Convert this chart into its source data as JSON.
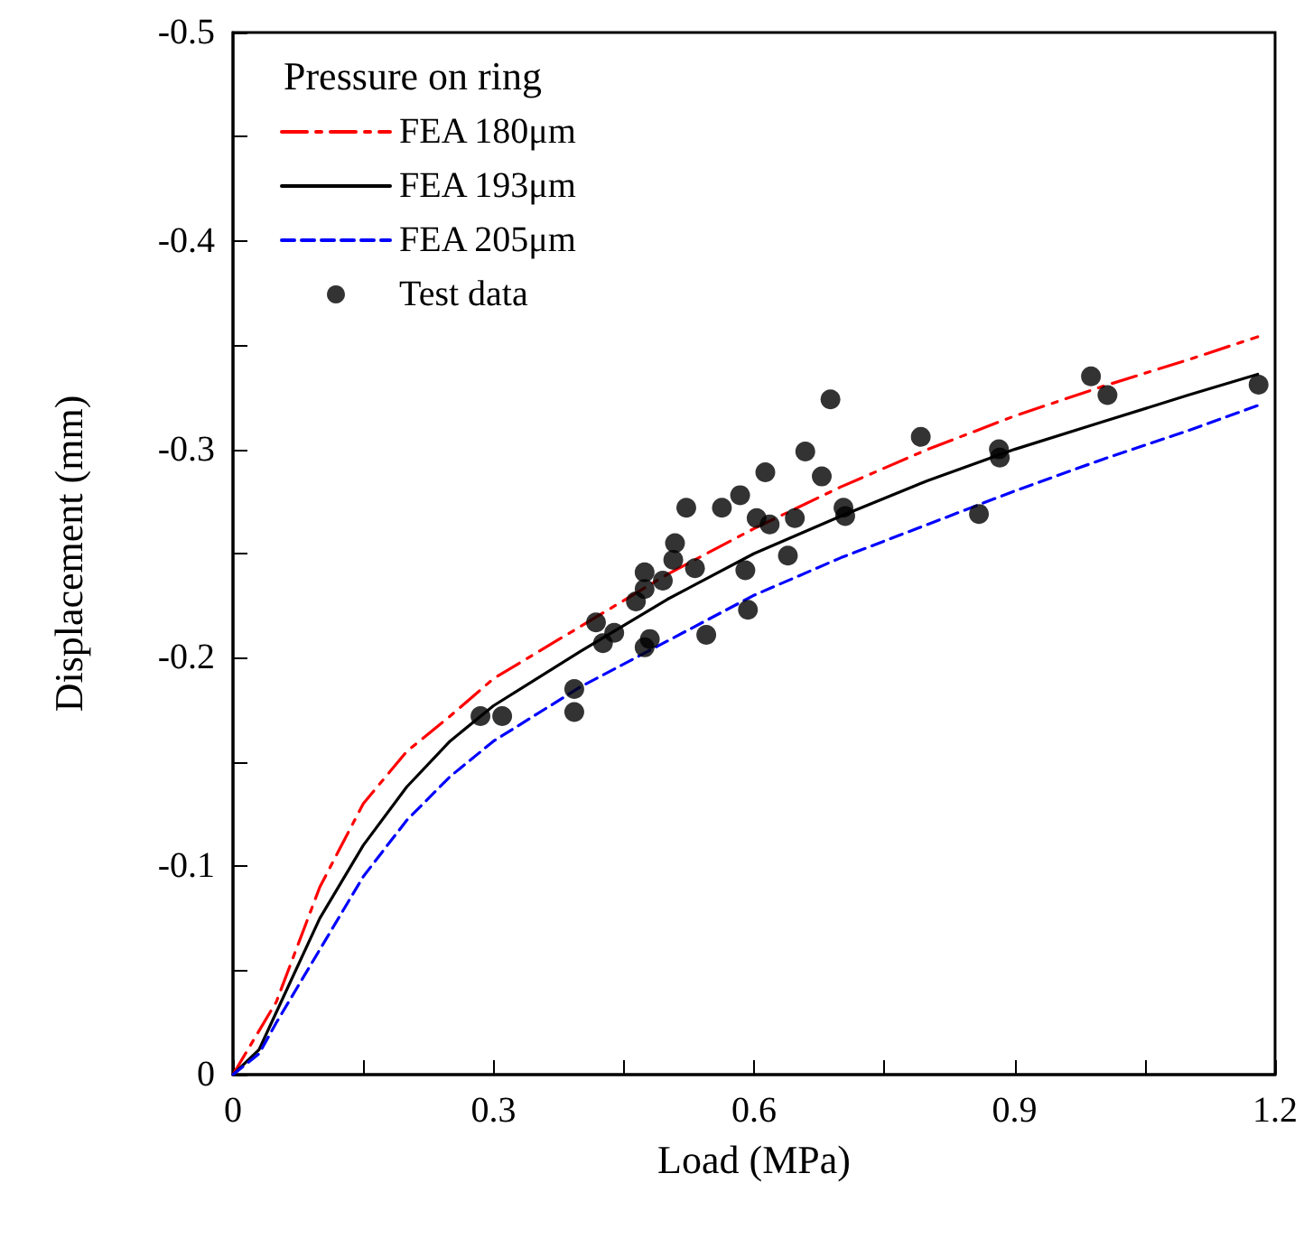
{
  "chart_data": {
    "type": "line",
    "xlabel": "Load (MPa)",
    "ylabel": "Displacement (mm)",
    "legend_title": "Pressure on ring",
    "legend": "top left",
    "grid": false,
    "xlim": [
      0,
      1.2
    ],
    "xticks": [
      0,
      {
        "value": 0.15,
        "label": null
      },
      0.3,
      {
        "value": 0.45,
        "label": null
      },
      0.6,
      {
        "value": 0.75,
        "label": null
      },
      0.9,
      {
        "value": 1.05,
        "label": null
      },
      1.2
    ],
    "ylim": [
      0,
      -0.5
    ],
    "yticks": [
      0,
      {
        "value": -0.05,
        "label": null
      },
      -0.1,
      {
        "value": -0.15,
        "label": null
      },
      -0.2,
      {
        "value": -0.25,
        "label": null
      },
      -0.3,
      {
        "value": -0.35,
        "label": null
      },
      -0.4,
      {
        "value": -0.45,
        "label": null
      },
      -0.5
    ],
    "series": [
      {
        "name": "FEA 180μm",
        "color": "#ff0000",
        "line_style": "dashdot",
        "marker": "none",
        "x": [
          0,
          0.05,
          0.1,
          0.15,
          0.2,
          0.25,
          0.3,
          0.4,
          0.5,
          0.6,
          0.7,
          0.8,
          0.9,
          1.0,
          1.1,
          1.18
        ],
        "values": [
          0,
          -0.035,
          -0.09,
          -0.13,
          -0.155,
          -0.172,
          -0.19,
          -0.215,
          -0.24,
          -0.262,
          -0.282,
          -0.3,
          -0.316,
          -0.33,
          -0.343,
          -0.354
        ]
      },
      {
        "name": "FEA 193μm",
        "color": "#000000",
        "line_style": "solid",
        "marker": "none",
        "x": [
          0,
          0.03,
          0.05,
          0.1,
          0.15,
          0.2,
          0.25,
          0.3,
          0.4,
          0.5,
          0.6,
          0.7,
          0.8,
          0.9,
          1.0,
          1.1,
          1.18
        ],
        "values": [
          0,
          -0.012,
          -0.03,
          -0.075,
          -0.11,
          -0.138,
          -0.16,
          -0.177,
          -0.203,
          -0.228,
          -0.25,
          -0.268,
          -0.285,
          -0.3,
          -0.313,
          -0.326,
          -0.336
        ]
      },
      {
        "name": "FEA 205μm",
        "color": "#0000ff",
        "line_style": "dashed",
        "marker": "none",
        "x": [
          0,
          0.03,
          0.05,
          0.1,
          0.15,
          0.2,
          0.25,
          0.3,
          0.4,
          0.5,
          0.6,
          0.7,
          0.8,
          0.9,
          1.0,
          1.1,
          1.18
        ],
        "values": [
          0,
          -0.01,
          -0.025,
          -0.06,
          -0.095,
          -0.122,
          -0.143,
          -0.16,
          -0.186,
          -0.208,
          -0.23,
          -0.248,
          -0.264,
          -0.28,
          -0.295,
          -0.309,
          -0.321
        ]
      },
      {
        "name": "Test data",
        "color": "#000000",
        "type": "scatter",
        "marker": "circle",
        "x": [
          0.285,
          0.31,
          0.393,
          0.393,
          0.418,
          0.426,
          0.439,
          0.464,
          0.474,
          0.474,
          0.474,
          0.48,
          0.495,
          0.507,
          0.509,
          0.522,
          0.532,
          0.545,
          0.563,
          0.584,
          0.59,
          0.593,
          0.603,
          0.613,
          0.618,
          0.639,
          0.647,
          0.659,
          0.678,
          0.688,
          0.703,
          0.705,
          0.792,
          0.859,
          0.882,
          0.883,
          0.988,
          1.007,
          1.181
        ],
        "values": [
          -0.172,
          -0.172,
          -0.185,
          -0.174,
          -0.217,
          -0.207,
          -0.212,
          -0.227,
          -0.233,
          -0.241,
          -0.205,
          -0.209,
          -0.237,
          -0.247,
          -0.255,
          -0.272,
          -0.243,
          -0.211,
          -0.272,
          -0.278,
          -0.242,
          -0.223,
          -0.267,
          -0.289,
          -0.264,
          -0.249,
          -0.267,
          -0.299,
          -0.287,
          -0.324,
          -0.272,
          -0.268,
          -0.306,
          -0.269,
          -0.3,
          -0.296,
          -0.335,
          -0.326,
          -0.331
        ]
      }
    ]
  }
}
